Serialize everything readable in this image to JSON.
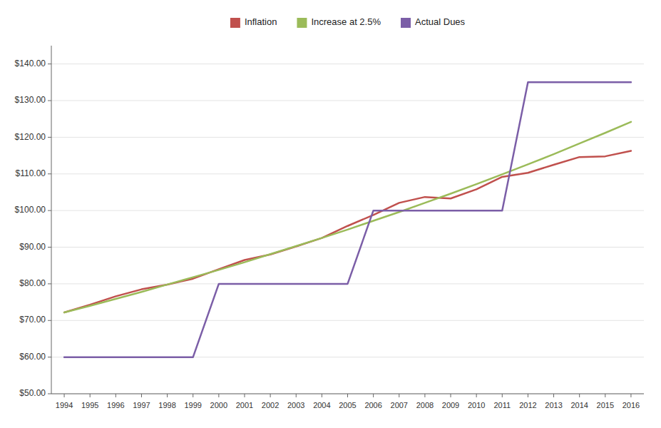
{
  "chart_data": {
    "type": "line",
    "x": [
      1994,
      1995,
      1996,
      1997,
      1998,
      1999,
      2000,
      2001,
      2002,
      2003,
      2004,
      2005,
      2006,
      2007,
      2008,
      2009,
      2010,
      2011,
      2012,
      2013,
      2014,
      2015,
      2016
    ],
    "xlim": [
      1993.5,
      2016.5
    ],
    "xticks": [
      1994,
      1995,
      1996,
      1997,
      1998,
      1999,
      2000,
      2001,
      2002,
      2003,
      2004,
      2005,
      2006,
      2007,
      2008,
      2009,
      2010,
      2011,
      2012,
      2013,
      2014,
      2015,
      2016
    ],
    "ylim": [
      50,
      145
    ],
    "yticks": [
      {
        "value": 50,
        "label": "$50.00"
      },
      {
        "value": 60,
        "label": "$60.00"
      },
      {
        "value": 70,
        "label": "$70.00"
      },
      {
        "value": 80,
        "label": "$80.00"
      },
      {
        "value": 90,
        "label": "$90.00"
      },
      {
        "value": 100,
        "label": "$100.00"
      },
      {
        "value": 110,
        "label": "$110.00"
      },
      {
        "value": 120,
        "label": "$120.00"
      },
      {
        "value": 130,
        "label": "$130.00"
      },
      {
        "value": 140,
        "label": "$140.00"
      }
    ],
    "series": [
      {
        "name": "Inflation",
        "color": "#C0504D",
        "values": [
          72.2,
          74.3,
          76.6,
          78.5,
          79.8,
          81.4,
          84.0,
          86.5,
          88.0,
          90.2,
          92.5,
          95.8,
          98.8,
          102.1,
          103.7,
          103.3,
          105.8,
          109.2,
          110.3,
          112.5,
          114.6,
          114.8,
          116.3
        ]
      },
      {
        "name": "Increase at 2.5%",
        "color": "#9BBB59",
        "values": [
          72.2,
          74.0,
          75.9,
          77.8,
          79.8,
          81.8,
          83.8,
          85.9,
          88.1,
          90.3,
          92.5,
          94.8,
          97.2,
          99.6,
          102.1,
          104.6,
          107.2,
          109.9,
          112.6,
          115.4,
          118.3,
          121.2,
          124.2
        ]
      },
      {
        "name": "Actual Dues",
        "color": "#7B5EA7",
        "values": [
          60,
          60,
          60,
          60,
          60,
          60,
          80,
          80,
          80,
          80,
          80,
          80,
          100,
          100,
          100,
          100,
          100,
          100,
          135,
          135,
          135,
          135,
          135
        ]
      }
    ],
    "grid": true,
    "legend": "top"
  }
}
